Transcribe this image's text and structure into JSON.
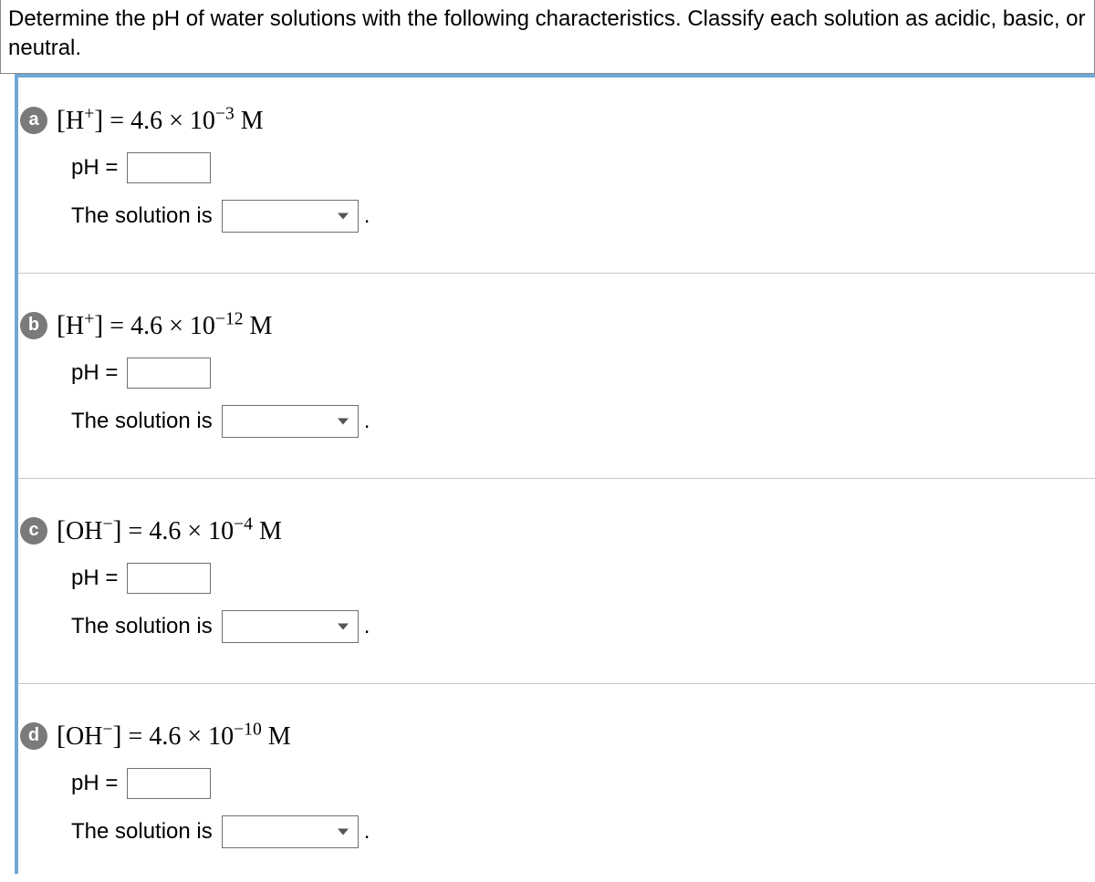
{
  "header": "Determine the pH of water solutions with the following characteristics. Classify each solution as acidic, basic, or neutral.",
  "ph_label": "pH =",
  "classify_label": "The solution is",
  "period": ".",
  "parts": [
    {
      "letter": "a",
      "species": "H",
      "charge": "+",
      "coef": "4.6",
      "exp": "−3",
      "unit": "M"
    },
    {
      "letter": "b",
      "species": "H",
      "charge": "+",
      "coef": "4.6",
      "exp": "−12",
      "unit": "M"
    },
    {
      "letter": "c",
      "species": "OH",
      "charge": "−",
      "coef": "4.6",
      "exp": "−4",
      "unit": "M"
    },
    {
      "letter": "d",
      "species": "OH",
      "charge": "−",
      "coef": "4.6",
      "exp": "−10",
      "unit": "M"
    }
  ],
  "colors": {
    "accent_border": "#6fa8d6",
    "badge_bg": "#7a7a7a",
    "divider": "#c8c8c8"
  }
}
